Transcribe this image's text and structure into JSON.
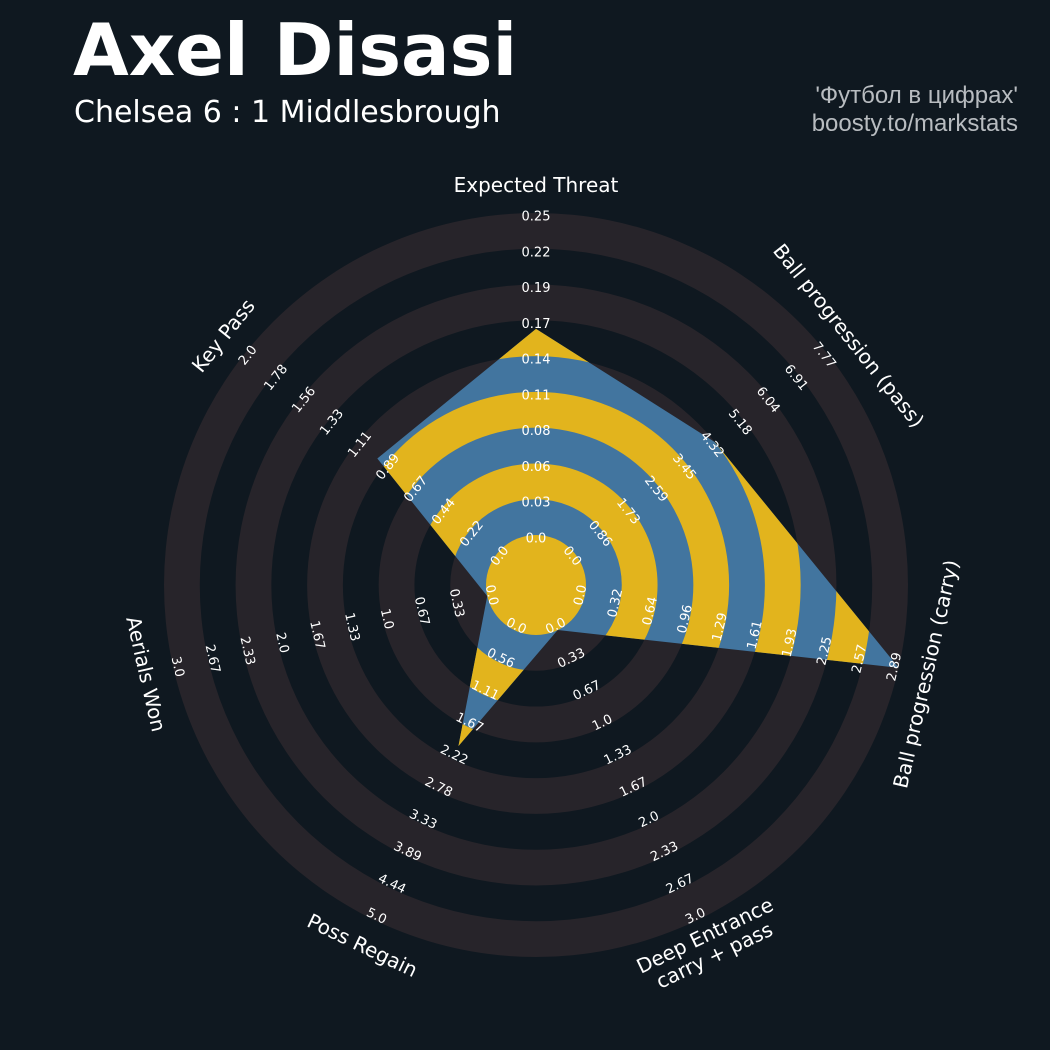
{
  "header": {
    "title": "Axel Disasi",
    "subtitle": "Chelsea 6 : 1 Middlesbrough",
    "credit_line1": "'Футбол в цифрах'",
    "credit_line2": "boosty.to/markstats"
  },
  "colors": {
    "background": "#0f1820",
    "ring": "#27242a",
    "fill_blue": "#42759f",
    "fill_yellow": "#e2b41d",
    "text": "#ffffff"
  },
  "chart_data": {
    "type": "radar",
    "title": "Axel Disasi",
    "grid": true,
    "params": [
      {
        "label": "Expected Threat",
        "value": 0.16,
        "min": 0.0,
        "max": 0.25,
        "ticks": [
          "0.0",
          "0.03",
          "0.06",
          "0.08",
          "0.11",
          "0.14",
          "0.17",
          "0.19",
          "0.22",
          "0.25"
        ]
      },
      {
        "label": "Ball progression (pass)",
        "value": 4.32,
        "min": 0.0,
        "max": 7.77,
        "ticks": [
          "0.0",
          "0.86",
          "1.73",
          "2.59",
          "3.45",
          "4.32",
          "5.18",
          "6.04",
          "6.91",
          "7.77"
        ]
      },
      {
        "label": "Ball progression (carry)",
        "value": 2.89,
        "min": 0.0,
        "max": 2.89,
        "ticks": [
          "0.0",
          "0.32",
          "0.64",
          "0.96",
          "1.29",
          "1.61",
          "1.93",
          "2.25",
          "2.57",
          "2.89"
        ]
      },
      {
        "label": "Deep Entrance\ncarry + pass",
        "value": 0.0,
        "min": 0.0,
        "max": 3.0,
        "ticks": [
          "0.0",
          "0.33",
          "0.67",
          "1.0",
          "1.33",
          "1.67",
          "2.0",
          "2.33",
          "2.67",
          "3.0"
        ]
      },
      {
        "label": "Poss Regain",
        "value": 2.0,
        "min": 0.0,
        "max": 5.0,
        "ticks": [
          "0.0",
          "0.56",
          "1.11",
          "1.67",
          "2.22",
          "2.78",
          "3.33",
          "3.89",
          "4.44",
          "5.0"
        ]
      },
      {
        "label": "Aerials Won",
        "value": 0.0,
        "min": 0.0,
        "max": 3.0,
        "ticks": [
          "0.0",
          "0.33",
          "0.67",
          "1.0",
          "1.33",
          "1.67",
          "2.0",
          "2.33",
          "2.67",
          "3.0"
        ]
      },
      {
        "label": "Key Pass",
        "value": 0.95,
        "min": 0.0,
        "max": 2.0,
        "ticks": [
          "0.0",
          "0.22",
          "0.44",
          "0.67",
          "0.89",
          "1.11",
          "1.33",
          "1.56",
          "1.78",
          "2.0"
        ]
      }
    ]
  }
}
